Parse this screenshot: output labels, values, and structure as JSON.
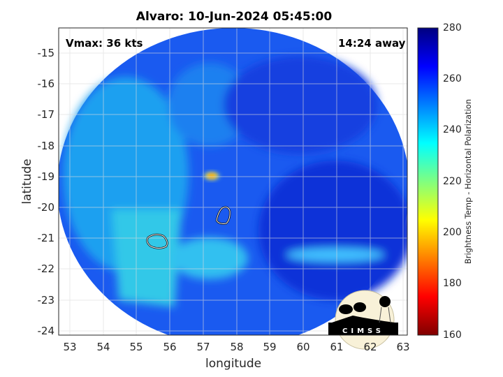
{
  "title": "Alvaro: 10-Jun-2024 05:45:00",
  "annotations": {
    "vmax": "Vmax: 36 kts",
    "away": "14:24 away"
  },
  "axes": {
    "xlabel": "longitude",
    "ylabel": "latitude",
    "xlim": [
      52.66,
      63.13
    ],
    "ylim": [
      -24.14,
      -14.19
    ],
    "xticks": [
      "53",
      "54",
      "55",
      "56",
      "57",
      "58",
      "59",
      "60",
      "61",
      "62",
      "63"
    ],
    "yticks": [
      "-15",
      "-16",
      "-17",
      "-18",
      "-19",
      "-20",
      "-21",
      "-22",
      "-23",
      "-24"
    ],
    "grid": true
  },
  "colorbar": {
    "label": "Brightness Temp - Horizontal Polarization",
    "range": [
      160,
      280
    ],
    "ticks": [
      "280",
      "260",
      "240",
      "220",
      "200",
      "180",
      "160"
    ],
    "colormap": "jet"
  },
  "logo": {
    "text": "CIMSS",
    "background": "#f8f1d8"
  },
  "colors": {
    "warm_core": "#ff8c00",
    "background_field": "#1040f0"
  }
}
